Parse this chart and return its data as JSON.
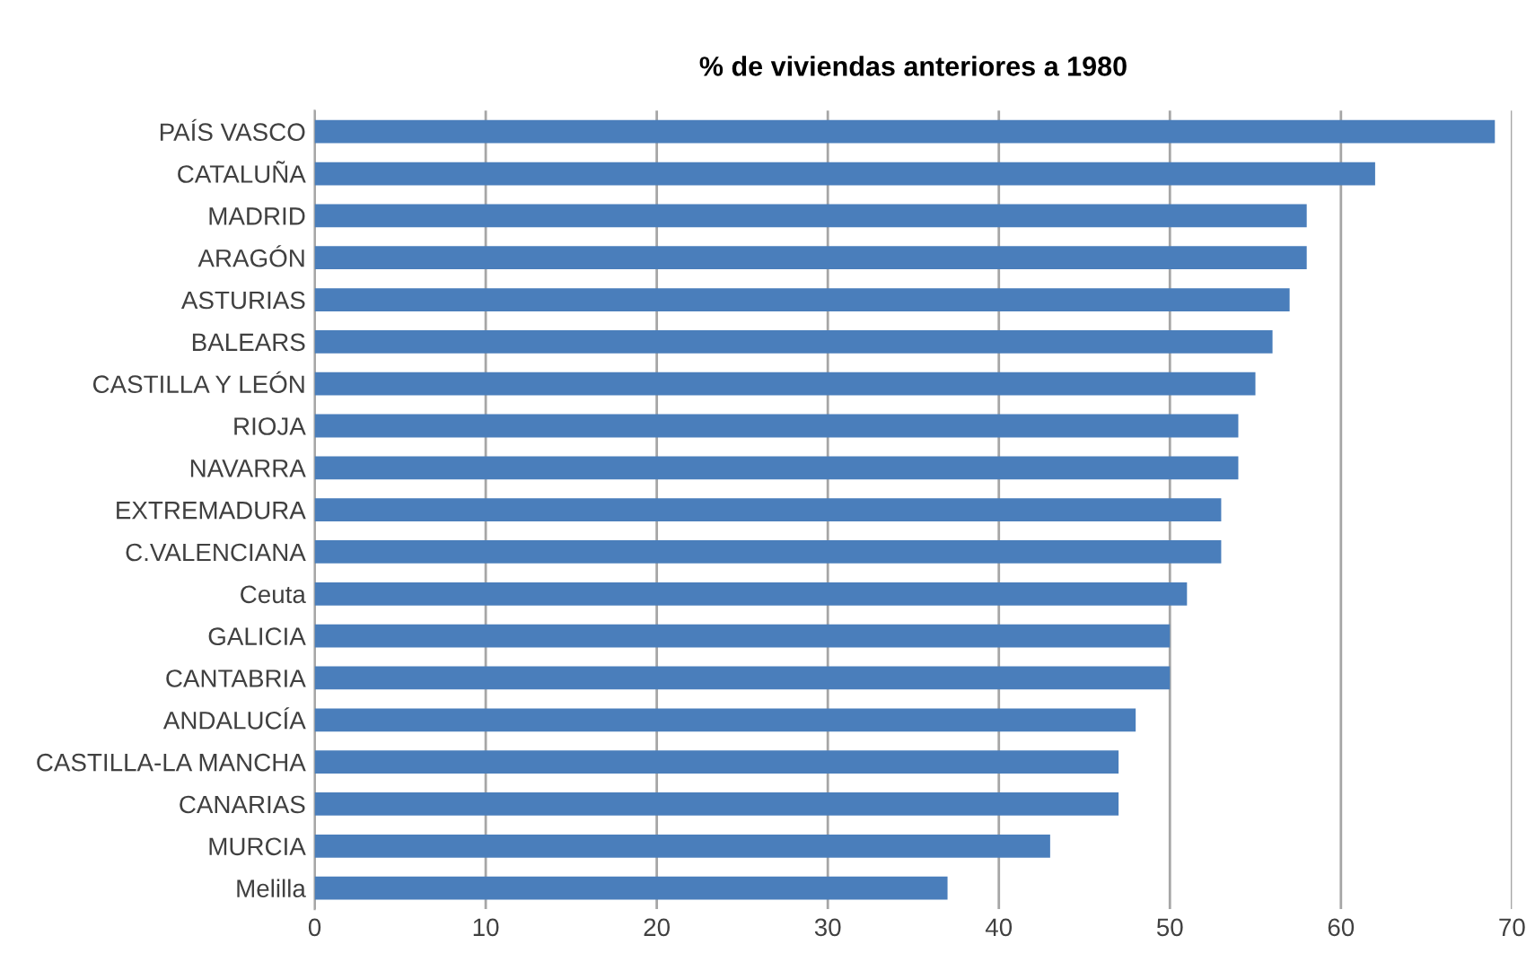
{
  "chart_data": {
    "type": "bar",
    "orientation": "horizontal",
    "title": "% de viviendas anteriores a 1980",
    "categories": [
      "PAÍS VASCO",
      "CATALUÑA",
      "MADRID",
      "ARAGÓN",
      "ASTURIAS",
      "BALEARS",
      "CASTILLA Y LEÓN",
      "RIOJA",
      "NAVARRA",
      "EXTREMADURA",
      "C.VALENCIANA",
      "Ceuta",
      "GALICIA",
      "CANTABRIA",
      "ANDALUCÍA",
      "CASTILLA-LA MANCHA",
      "CANARIAS",
      "MURCIA",
      "Melilla"
    ],
    "values": [
      69,
      62,
      58,
      58,
      57,
      56,
      55,
      54,
      54,
      53,
      53,
      51,
      50,
      50,
      48,
      47,
      47,
      43,
      37
    ],
    "color": "#4a7ebb",
    "xlim": [
      0,
      70
    ],
    "xticks": [
      0,
      10,
      20,
      30,
      40,
      50,
      60,
      70
    ],
    "grid": "x"
  }
}
